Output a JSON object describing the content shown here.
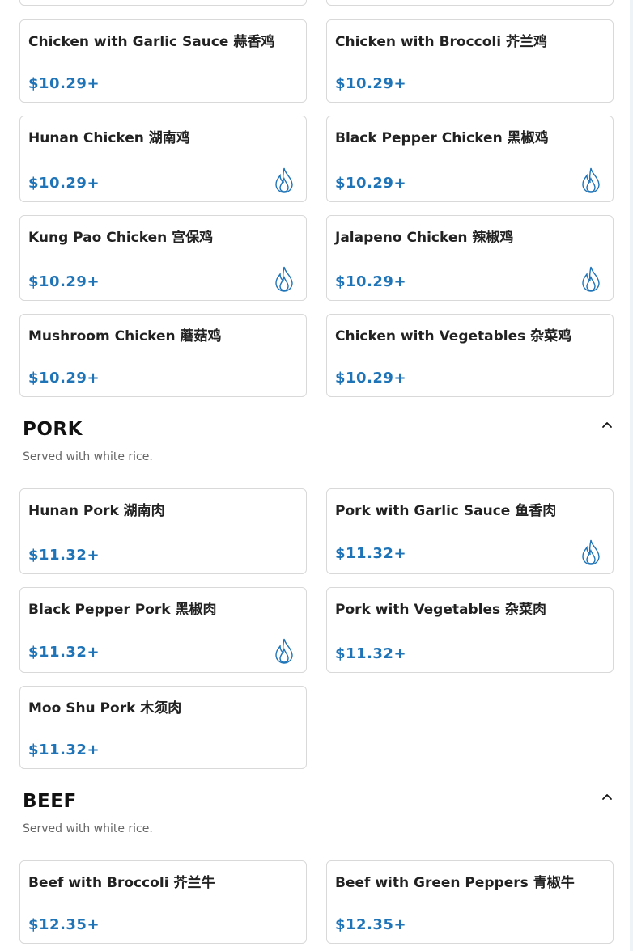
{
  "colors": {
    "price": "#1f74b8",
    "border": "#d9d9d9",
    "flame": "#1f74b8"
  },
  "chicken": {
    "items": [
      {
        "name": "Chicken with Garlic Sauce 蒜香鸡",
        "price": "$10.29+",
        "spicy": false
      },
      {
        "name": "Chicken with Broccoli 芥兰鸡",
        "price": "$10.29+",
        "spicy": false
      },
      {
        "name": " Hunan Chicken 湖南鸡",
        "price": "$10.29+",
        "spicy": true
      },
      {
        "name": "Black Pepper Chicken 黑椒鸡",
        "price": "$10.29+",
        "spicy": true
      },
      {
        "name": " Kung Pao Chicken 宫保鸡",
        "price": "$10.29+",
        "spicy": true
      },
      {
        "name": "Jalapeno Chicken 辣椒鸡",
        "price": "$10.29+",
        "spicy": true
      },
      {
        "name": " Mushroom Chicken 蘑菇鸡",
        "price": "$10.29+",
        "spicy": false
      },
      {
        "name": " Chicken with Vegetables 杂菜鸡",
        "price": "$10.29+",
        "spicy": false
      }
    ]
  },
  "pork": {
    "title": "PORK",
    "description": "Served with white rice.",
    "items": [
      {
        "name": "Hunan Pork 湖南肉",
        "price": "$11.32+",
        "spicy": false
      },
      {
        "name": "Pork with Garlic Sauce 鱼香肉",
        "price": "$11.32+",
        "spicy": true
      },
      {
        "name": "Black Pepper Pork 黑椒肉",
        "price": "$11.32+",
        "spicy": true
      },
      {
        "name": " Pork with Vegetables 杂菜肉",
        "price": "$11.32+",
        "spicy": false
      },
      {
        "name": "Moo Shu Pork 木须肉",
        "price": "$11.32+",
        "spicy": false
      }
    ]
  },
  "beef": {
    "title": "BEEF",
    "description": "Served with white rice.",
    "items": [
      {
        "name": "Beef with Broccoli 芥兰牛",
        "price": "$12.35+",
        "spicy": false
      },
      {
        "name": " Beef with Green Peppers 青椒牛",
        "price": "$12.35+",
        "spicy": false
      }
    ]
  }
}
